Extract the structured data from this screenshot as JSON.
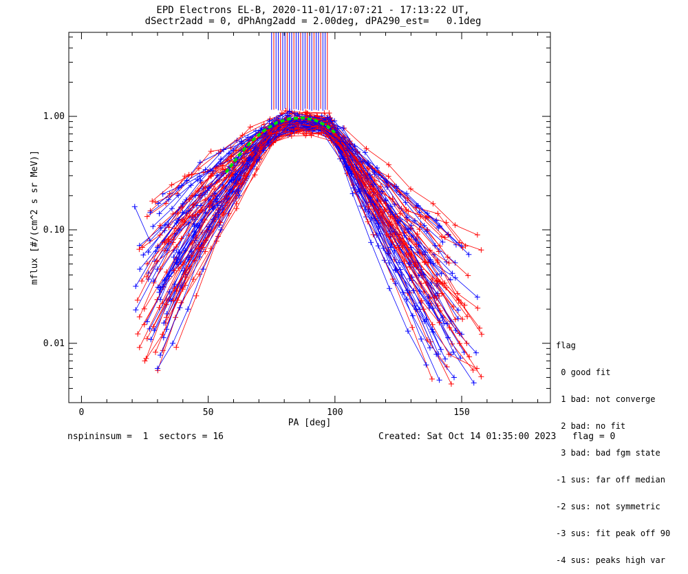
{
  "header": {
    "title_line1": "EPD Electrons EL-B, 2020-11-01/17:07:21 - 17:13:22 UT,",
    "title_line2": "dSectr2add = 0, dPhAng2add = 2.00deg, dPA290_est=   0.1deg"
  },
  "footer": {
    "left": "nspininsum =  1  sectors = 16",
    "right": "Created: Sat Oct 14 01:35:00 2023   flag = 0"
  },
  "legend": {
    "title": "flag",
    "items": [
      " 0 good fit",
      " 1 bad: not converge",
      " 2 bad: no fit",
      " 3 bad: bad fgm state",
      "-1 sus: far off median",
      "-2 sus: not symmetric",
      "-3 sus: fit peak off 90",
      "-4 sus: peaks high var"
    ]
  },
  "colors": {
    "series_a": "#ff0000",
    "series_b": "#0000ff",
    "fit": "#00e000",
    "axes": "#000000"
  },
  "chart_data": {
    "type": "line",
    "xlabel": "PA [deg]",
    "ylabel": "mflux [#/(cm^2 s sr MeV)]",
    "xlim": [
      -5,
      185
    ],
    "ylim": [
      0.003,
      5.5
    ],
    "yscale": "log",
    "x_ticks": [
      0,
      50,
      100,
      150
    ],
    "x_tick_labels": [
      "0",
      "50",
      "100",
      "150"
    ],
    "y_ticks": [
      0.01,
      0.1,
      1.0
    ],
    "y_tick_labels": [
      "0.01",
      "0.10",
      "1.00"
    ],
    "grid": false,
    "fit_curve": {
      "color": "green-dashed",
      "x": [
        57,
        62,
        67,
        72,
        77,
        82,
        87,
        92,
        97,
        100
      ],
      "y": [
        0.32,
        0.45,
        0.6,
        0.75,
        0.88,
        0.95,
        0.97,
        0.93,
        0.82,
        0.72
      ]
    },
    "spike_pa_range": [
      75,
      97
    ],
    "series_examples": [
      {
        "color": "blue",
        "x": [
          21,
          27,
          33,
          40,
          47,
          55,
          63,
          75,
          85,
          95,
          105,
          115,
          125,
          135,
          143
        ],
        "y": [
          0.16,
          0.08,
          0.11,
          0.17,
          0.27,
          0.42,
          0.6,
          0.85,
          0.9,
          0.86,
          0.5,
          0.25,
          0.12,
          0.04,
          0.015
        ]
      },
      {
        "color": "red",
        "x": [
          25,
          32,
          40,
          48,
          56,
          64,
          75,
          85,
          95,
          105,
          115,
          125,
          135,
          145,
          156
        ],
        "y": [
          0.007,
          0.012,
          0.03,
          0.07,
          0.14,
          0.3,
          0.7,
          0.85,
          0.8,
          0.45,
          0.2,
          0.07,
          0.02,
          0.008,
          0.006
        ]
      },
      {
        "color": "blue",
        "x": [
          23,
          30,
          38,
          45,
          52,
          60,
          70,
          80,
          90,
          100,
          110,
          120,
          130,
          140,
          150
        ],
        "y": [
          0.045,
          0.07,
          0.12,
          0.2,
          0.33,
          0.5,
          0.72,
          0.92,
          0.95,
          0.75,
          0.4,
          0.18,
          0.07,
          0.025,
          0.012
        ]
      },
      {
        "color": "red",
        "x": [
          24,
          31,
          38,
          46,
          53,
          61,
          70,
          80,
          90,
          100,
          110,
          120,
          130,
          140,
          152
        ],
        "y": [
          0.07,
          0.09,
          0.14,
          0.22,
          0.35,
          0.5,
          0.7,
          0.85,
          0.88,
          0.7,
          0.38,
          0.17,
          0.06,
          0.025,
          0.01
        ]
      },
      {
        "color": "blue",
        "x": [
          30,
          36,
          42,
          48,
          55,
          62,
          72,
          82,
          92,
          102,
          112,
          122,
          132,
          140,
          147
        ],
        "y": [
          0.006,
          0.01,
          0.02,
          0.045,
          0.1,
          0.22,
          0.5,
          0.85,
          0.88,
          0.6,
          0.22,
          0.07,
          0.02,
          0.008,
          0.005
        ]
      }
    ]
  }
}
